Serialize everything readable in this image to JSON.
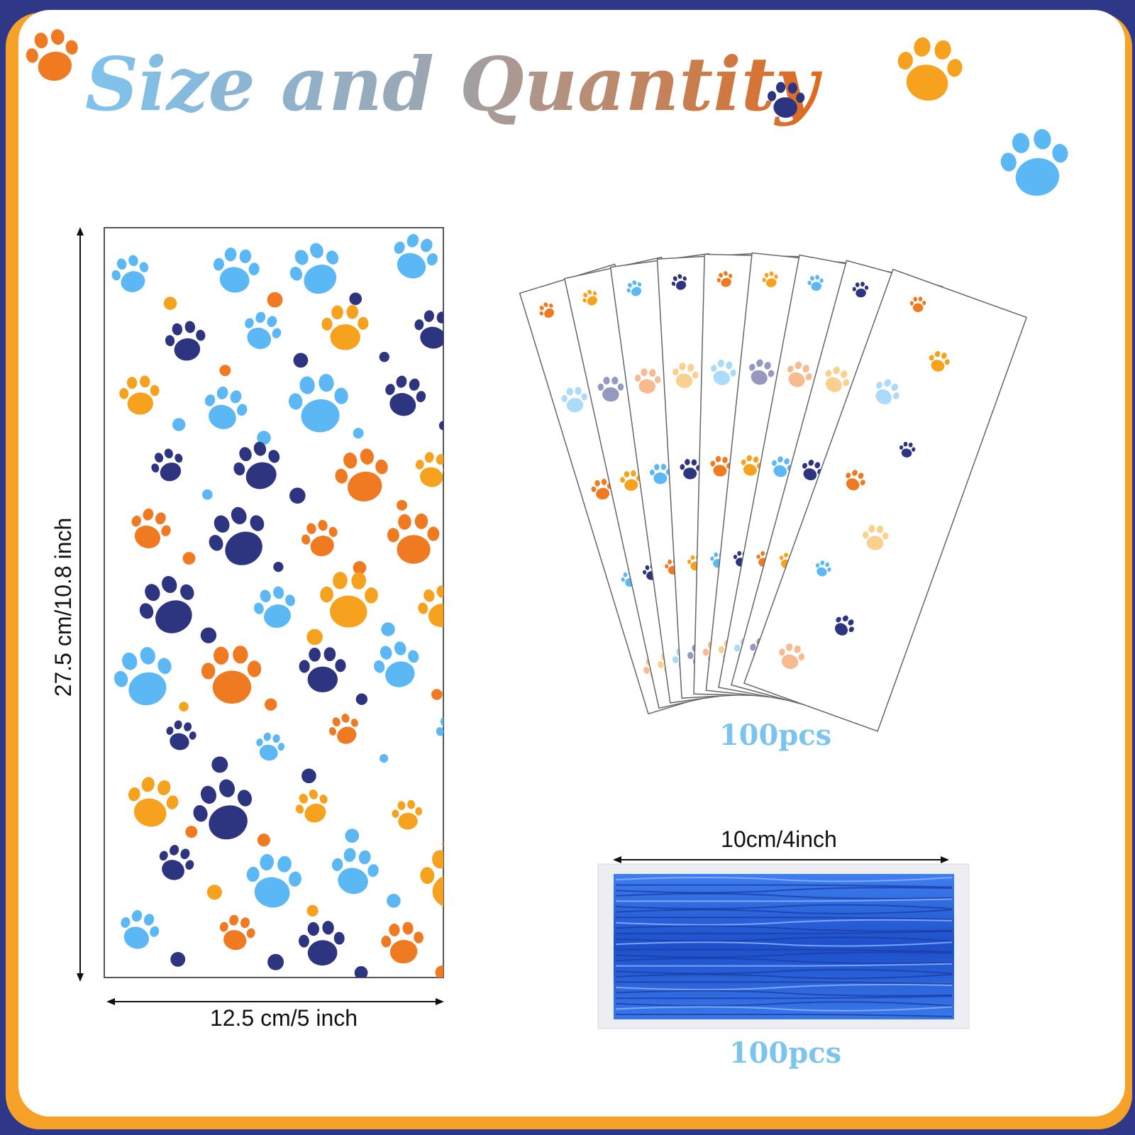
{
  "title": "Size and Quantity",
  "bag": {
    "height_label": "27.5 cm/10.8 inch",
    "width_label": "12.5 cm/5 inch"
  },
  "bag_stack": {
    "quantity": "100pcs"
  },
  "twist_ties": {
    "length_label": "10cm/4inch",
    "quantity": "100pcs"
  }
}
